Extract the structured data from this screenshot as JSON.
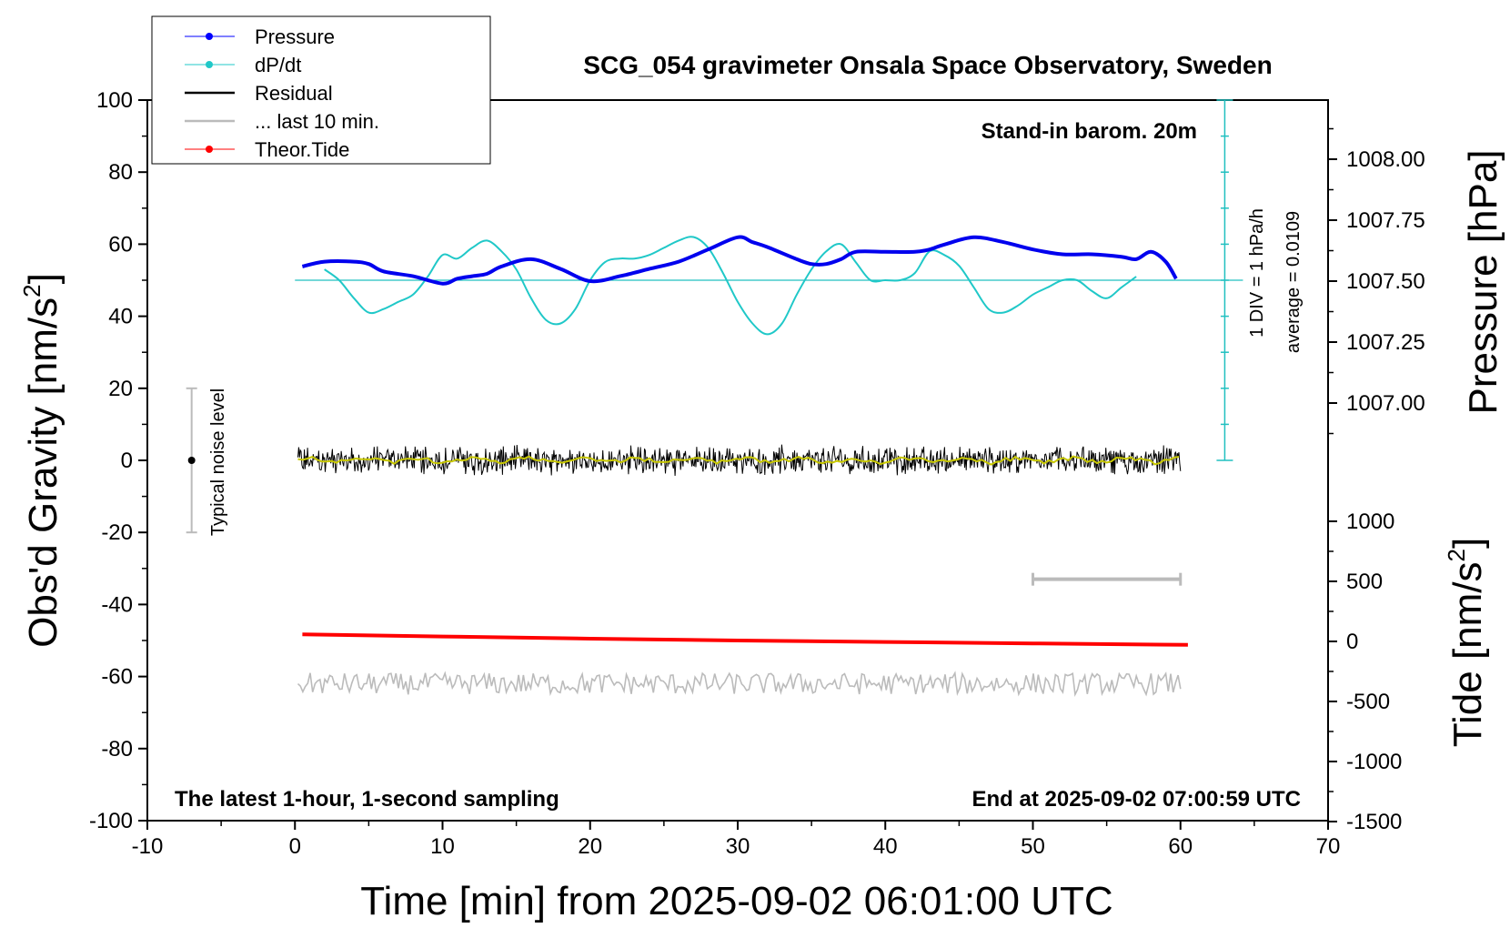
{
  "chart_data": {
    "type": "line",
    "title": "SCG_054 gravimeter Onsala Space Observatory, Sweden",
    "xlabel": "Time [min] from 2025-09-02 06:01:00 UTC",
    "ylabel_left": "Obs'd Gravity [nm/s",
    "ylabel_left_sup": "2",
    "ylabel_left_end": "]",
    "ylabel_right_pressure": "Pressure [hPa]",
    "ylabel_right_tide": "Tide [nm/s",
    "ylabel_right_tide_sup": "2",
    "ylabel_right_tide_end": "]",
    "xlim": [
      -10,
      70
    ],
    "ylim": [
      -100,
      100
    ],
    "xticks": [
      "-10",
      "0",
      "10",
      "20",
      "30",
      "40",
      "50",
      "60",
      "70"
    ],
    "yticks": [
      "100",
      "80",
      "60",
      "40",
      "20",
      "0",
      "-20",
      "-40",
      "-60",
      "-80",
      "-100"
    ],
    "pressure_ticks": [
      "1008.00",
      "1007.75",
      "1007.50",
      "1007.25",
      "1007.00"
    ],
    "pressure_tick_values": [
      1008.0,
      1007.75,
      1007.5,
      1007.25,
      1007.0
    ],
    "tide_ticks": [
      "1000",
      "500",
      "0",
      "-500",
      "-1000",
      "-1500"
    ],
    "tide_tick_values": [
      1000,
      500,
      0,
      -500,
      -1000,
      -1500
    ],
    "legend": [
      {
        "label": "Pressure",
        "color": "#0000ff",
        "marker": true
      },
      {
        "label": "dP/dt",
        "color": "#20c8c8",
        "marker": true
      },
      {
        "label": "Residual",
        "color": "#000000",
        "marker": false
      },
      {
        "label": "... last 10 min.",
        "color": "#bbbbbb",
        "marker": false
      },
      {
        "label": "Theor.Tide",
        "color": "#ff0000",
        "marker": true
      }
    ],
    "annotations": {
      "barometer": "Stand-in barom. 20m",
      "div_label": "1 DIV = 1 hPa/h",
      "average_label": "average = 0.0109",
      "noise_label": "Typical noise level",
      "latest_label": "The latest 1-hour, 1-second sampling",
      "end_label": "End at 2025-09-02 07:00:59 UTC"
    },
    "series": [
      {
        "name": "Pressure",
        "axis": "pressure_hPa",
        "x": [
          0.5,
          2,
          4,
          5,
          6,
          8,
          10,
          11,
          12,
          13,
          14,
          16,
          18,
          20,
          22,
          24,
          26,
          28,
          30,
          31,
          32,
          34,
          35,
          36,
          37,
          38,
          40,
          42,
          43,
          44,
          46,
          48,
          50,
          52,
          54,
          56,
          57,
          58,
          59,
          59.7
        ],
        "y": [
          1007.56,
          1007.58,
          1007.58,
          1007.57,
          1007.54,
          1007.52,
          1007.49,
          1007.51,
          1007.52,
          1007.53,
          1007.56,
          1007.59,
          1007.55,
          1007.5,
          1007.52,
          1007.55,
          1007.58,
          1007.63,
          1007.68,
          1007.66,
          1007.64,
          1007.59,
          1007.57,
          1007.57,
          1007.59,
          1007.62,
          1007.62,
          1007.62,
          1007.63,
          1007.65,
          1007.68,
          1007.66,
          1007.63,
          1007.61,
          1007.61,
          1007.6,
          1007.59,
          1007.62,
          1007.58,
          1007.51
        ]
      },
      {
        "name": "dP/dt",
        "axis": "gravity_scale",
        "x": [
          2,
          3,
          4,
          5,
          6,
          7,
          8,
          9,
          10,
          11,
          12,
          13,
          14,
          15,
          16,
          17,
          18,
          19,
          20,
          21,
          22,
          23,
          24,
          25,
          26,
          27,
          28,
          29,
          30,
          31,
          32,
          33,
          34,
          35,
          36,
          37,
          38,
          39,
          40,
          41,
          42,
          43,
          44,
          45,
          46,
          47,
          48,
          49,
          50,
          51,
          52,
          53,
          54,
          55,
          56,
          57
        ],
        "y": [
          53,
          50,
          45,
          41,
          42,
          44,
          46,
          51,
          57,
          56,
          59,
          61,
          58,
          53,
          45,
          39,
          38,
          42,
          50,
          55,
          56,
          56,
          57,
          59,
          61,
          62,
          59,
          52,
          44,
          38,
          35,
          38,
          46,
          53,
          58,
          60,
          55,
          50,
          50,
          50,
          52,
          58,
          57,
          54,
          48,
          42,
          41,
          43,
          46,
          48,
          50,
          50,
          47,
          45,
          48,
          51
        ]
      },
      {
        "name": "Residual",
        "axis": "gravity",
        "noise_amplitude": 3.2
      },
      {
        "name": "... last 10 min.",
        "axis": "tide_scale",
        "center": -62,
        "noise_amplitude": 3.0
      },
      {
        "name": "Theor.Tide",
        "axis": "gravity_scale",
        "x": [
          0.5,
          10,
          20,
          30,
          40,
          50,
          60.5
        ],
        "y": [
          -48.3,
          -48.9,
          -49.5,
          -50.0,
          -50.4,
          -50.8,
          -51.2
        ]
      }
    ],
    "noise_bar": {
      "x": -7,
      "y_low": -20,
      "y_high": 20,
      "center": 0
    },
    "span_bar": {
      "x_start": 50,
      "x_end": 60,
      "y": -33
    },
    "dpdt_axis": {
      "x": 63,
      "y_low": 0,
      "y_high": 100,
      "baseline": 50
    }
  }
}
